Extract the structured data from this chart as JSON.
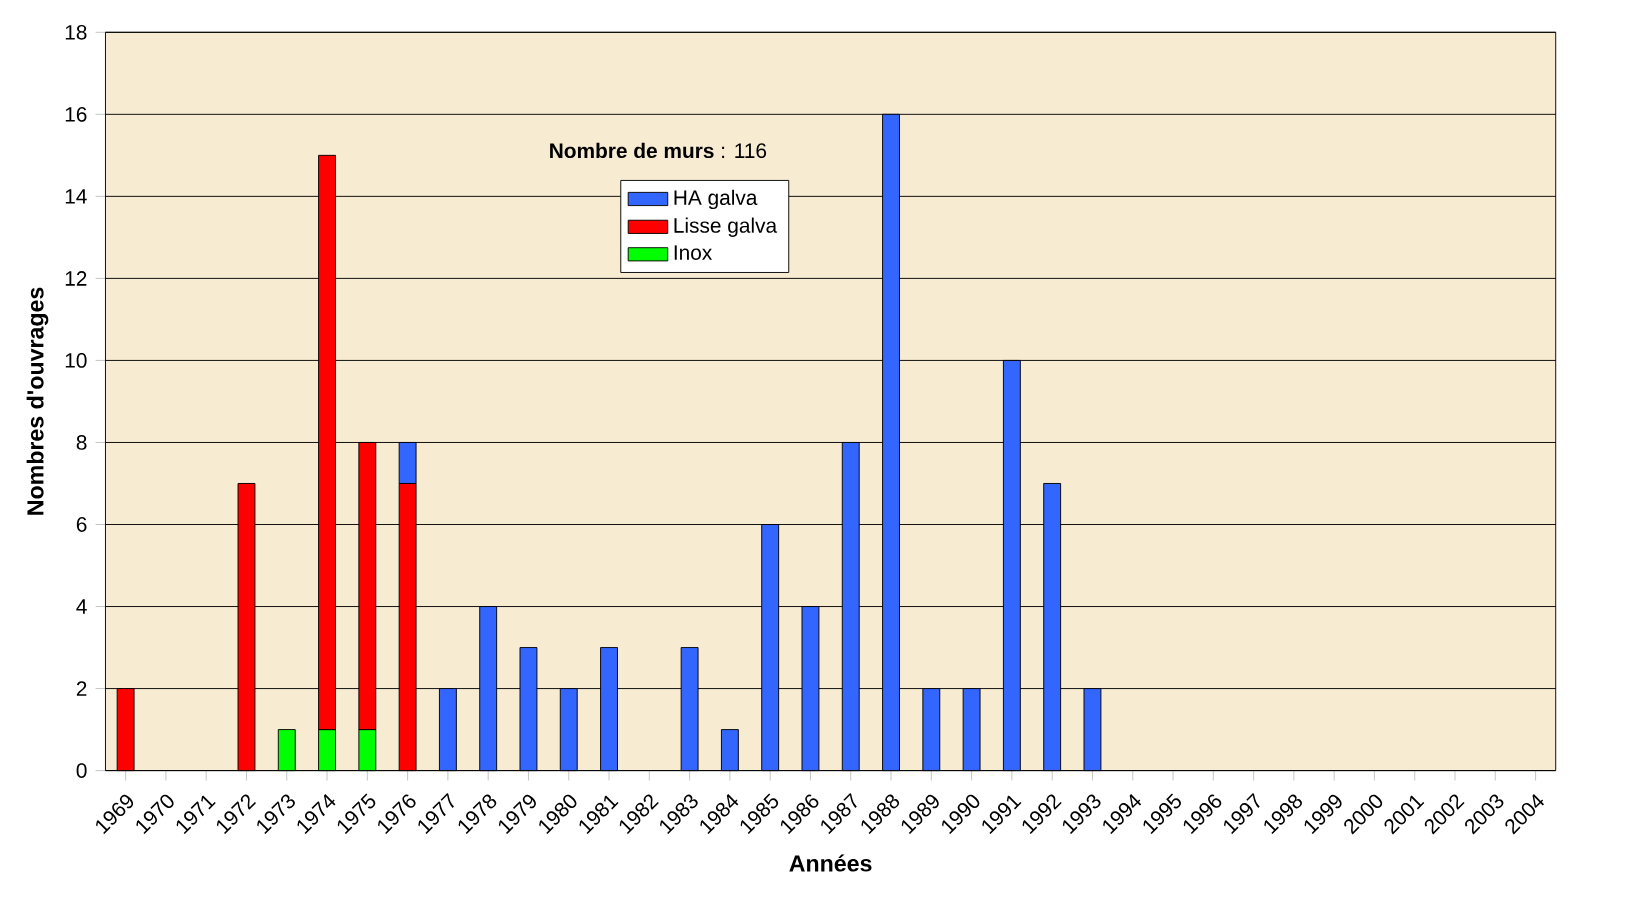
{
  "chart_data": {
    "type": "bar",
    "stacked": true,
    "xlabel": "Années",
    "ylabel": "Nombres d'ouvrages",
    "categories": [
      "1969",
      "1970",
      "1971",
      "1972",
      "1973",
      "1974",
      "1975",
      "1976",
      "1977",
      "1978",
      "1979",
      "1980",
      "1981",
      "1982",
      "1983",
      "1984",
      "1985",
      "1986",
      "1987",
      "1988",
      "1989",
      "1990",
      "1991",
      "1992",
      "1993",
      "1994",
      "1995",
      "1996",
      "1997",
      "1998",
      "1999",
      "2000",
      "2001",
      "2002",
      "2003",
      "2004"
    ],
    "series": [
      {
        "name": "Inox",
        "color": "#00ff00",
        "values": [
          null,
          null,
          null,
          null,
          1,
          1,
          1,
          null,
          null,
          null,
          null,
          null,
          null,
          null,
          null,
          null,
          null,
          null,
          null,
          null,
          null,
          null,
          null,
          null,
          null,
          null,
          null,
          null,
          null,
          null,
          null,
          null,
          null,
          null,
          null,
          null
        ]
      },
      {
        "name": "Lisse galva",
        "color": "#ff0000",
        "values": [
          2,
          null,
          null,
          7,
          null,
          14,
          7,
          7,
          null,
          null,
          null,
          null,
          null,
          null,
          null,
          null,
          null,
          null,
          null,
          null,
          null,
          null,
          null,
          null,
          null,
          null,
          null,
          null,
          null,
          null,
          null,
          null,
          null,
          null,
          null,
          null
        ]
      },
      {
        "name": "HA galva",
        "color": "#3366ff",
        "values": [
          null,
          null,
          null,
          null,
          null,
          null,
          null,
          1,
          2,
          4,
          3,
          2,
          3,
          null,
          3,
          1,
          6,
          4,
          8,
          16,
          2,
          2,
          10,
          7,
          2,
          null,
          null,
          null,
          null,
          null,
          null,
          null,
          null,
          null,
          null,
          null
        ]
      }
    ],
    "ylim": [
      0,
      18
    ],
    "yticks": [
      0,
      2,
      4,
      6,
      8,
      10,
      12,
      14,
      16,
      18
    ],
    "grid": "y",
    "legend": "top",
    "annotations": [
      "**Nombre de murs** : 116"
    ]
  }
}
